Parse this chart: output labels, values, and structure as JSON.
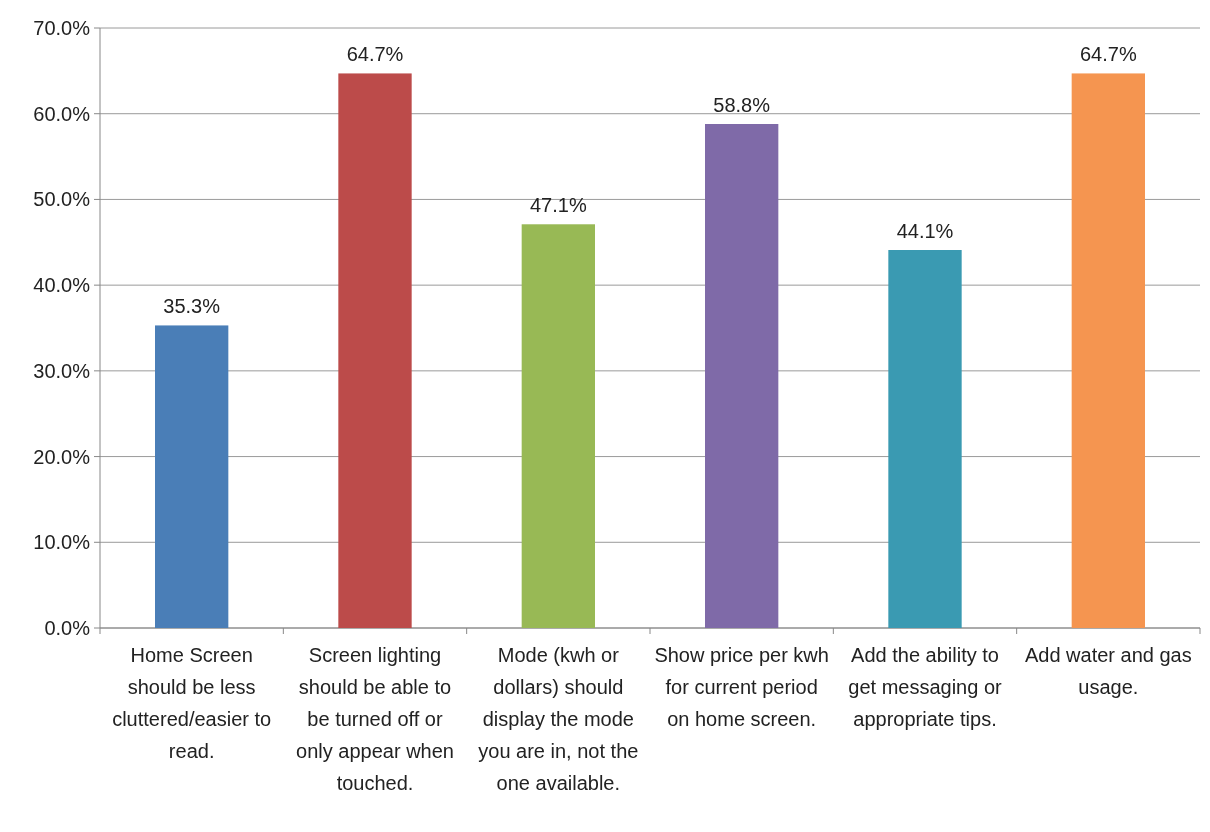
{
  "chart_data": {
    "type": "bar",
    "categories": [
      "Home Screen should be less cluttered/easier to read.",
      "Screen lighting should be able to be turned off or only appear when touched.",
      "Mode (kwh or dollars) should display the mode you are in, not the one available.",
      "Show price per kwh for current period on home screen.",
      "Add the ability to get messaging or appropriate tips.",
      "Add water and gas usage."
    ],
    "values": [
      35.3,
      64.7,
      47.1,
      58.8,
      44.1,
      64.7
    ],
    "colors": [
      "#4a7eb7",
      "#bc4b4a",
      "#98b955",
      "#7f6aa8",
      "#3a9ab2",
      "#f59550"
    ],
    "value_labels": [
      "35.3%",
      "64.7%",
      "47.1%",
      "58.8%",
      "44.1%",
      "64.7%"
    ],
    "ylim": [
      0,
      70
    ],
    "yticks": [
      {
        "value": 0,
        "label": "0.0%"
      },
      {
        "value": 10,
        "label": "10.0%"
      },
      {
        "value": 20,
        "label": "20.0%"
      },
      {
        "value": 30,
        "label": "30.0%"
      },
      {
        "value": 40,
        "label": "40.0%"
      },
      {
        "value": 50,
        "label": "50.0%"
      },
      {
        "value": 60,
        "label": "60.0%"
      },
      {
        "value": 70,
        "label": "70.0%"
      }
    ],
    "grid": "y"
  }
}
